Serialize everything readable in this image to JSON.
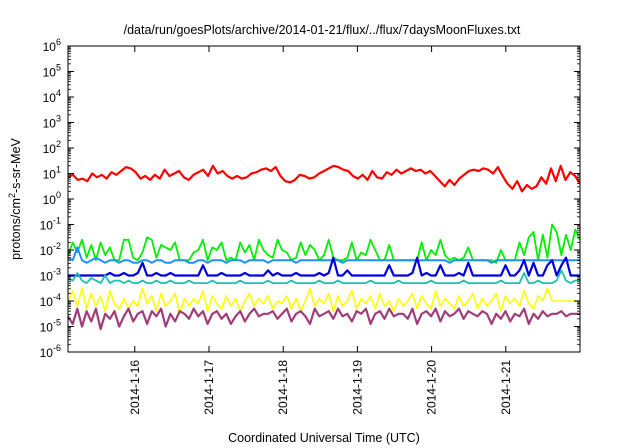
{
  "chart_data": {
    "type": "line",
    "title": "/data/run/goesPlots/archive/2014-01-21/flux/../flux/7daysMoonFluxes.txt",
    "xlabel": "Coordinated Universal Time (UTC)",
    "ylabel_prefix": "protons/cm",
    "ylabel_sup": "2",
    "ylabel_suffix": "-s-sr-MeV",
    "y_scale": "log",
    "ylim_exponents": [
      -6,
      6
    ],
    "y_tick_exponents": [
      6,
      5,
      4,
      3,
      2,
      1,
      0,
      -1,
      -2,
      -3,
      -4,
      -5,
      -6
    ],
    "y_tick_base": "10",
    "x_range_days": [
      15.1,
      22.0
    ],
    "x_ticks": [
      {
        "label": "2014-1-16",
        "day": 16
      },
      {
        "label": "2014-1-17",
        "day": 17
      },
      {
        "label": "2014-1-18",
        "day": 18
      },
      {
        "label": "2014-1-19",
        "day": 19
      },
      {
        "label": "2014-1-20",
        "day": 20
      },
      {
        "label": "2014-1-21",
        "day": 21
      }
    ],
    "grid": false,
    "legend": "none",
    "series": [
      {
        "color": "#ff0000",
        "x_day_start": 15.1,
        "x_day_end": 22.0,
        "log10_values": [
          0.85,
          0.95,
          0.75,
          0.8,
          0.7,
          1.0,
          0.85,
          0.95,
          0.8,
          1.05,
          0.95,
          1.1,
          1.25,
          1.2,
          1.05,
          0.8,
          0.9,
          0.75,
          0.95,
          0.8,
          1.15,
          0.9,
          1.0,
          1.1,
          0.85,
          0.75,
          0.95,
          1.05,
          1.15,
          0.9,
          1.3,
          1.0,
          1.1,
          0.9,
          0.8,
          0.9,
          0.8,
          0.85,
          1.0,
          1.05,
          1.15,
          1.2,
          1.1,
          1.25,
          0.9,
          0.7,
          0.65,
          0.75,
          0.95,
          0.9,
          0.8,
          0.85,
          1.0,
          1.1,
          1.2,
          1.3,
          1.25,
          1.15,
          1.1,
          0.9,
          0.8,
          0.95,
          0.75,
          1.1,
          0.85,
          0.8,
          1.05,
          0.95,
          1.15,
          1.0,
          1.1,
          1.2,
          1.1,
          1.15,
          1.0,
          1.1,
          0.9,
          0.7,
          0.5,
          0.75,
          0.55,
          0.8,
          0.95,
          1.1,
          1.15,
          1.1,
          1.2,
          1.15,
          1.0,
          1.25,
          0.9,
          0.6,
          0.4,
          0.7,
          0.3,
          0.55,
          0.4,
          0.5,
          0.85,
          0.6,
          1.2,
          0.7,
          1.3,
          0.75,
          1.05,
          0.9,
          0.6
        ],
        "stroke_width": 2.2
      },
      {
        "color": "#00ee00",
        "x_day_start": 15.1,
        "x_day_end": 22.0,
        "log10_values": [
          -2.2,
          -1.7,
          -2.1,
          -1.6,
          -2.3,
          -1.8,
          -2.4,
          -1.7,
          -2.2,
          -1.9,
          -2.4,
          -2.4,
          -1.6,
          -1.6,
          -2.3,
          -2.4,
          -2.1,
          -1.5,
          -1.6,
          -2.3,
          -1.8,
          -1.9,
          -2.0,
          -1.7,
          -2.4,
          -2.4,
          -2.4,
          -2.1,
          -2.0,
          -1.6,
          -2.4,
          -1.9,
          -2.0,
          -1.7,
          -2.4,
          -2.3,
          -2.4,
          -1.7,
          -2.1,
          -1.8,
          -2.4,
          -1.6,
          -2.0,
          -2.2,
          -2.3,
          -1.6,
          -2.0,
          -2.1,
          -2.4,
          -2.3,
          -1.7,
          -2.2,
          -1.8,
          -2.0,
          -2.4,
          -2.2,
          -1.6,
          -2.3,
          -2.4,
          -2.4,
          -2.3,
          -1.7,
          -2.4,
          -2.1,
          -2.2,
          -1.6,
          -2.0,
          -2.4,
          -2.4,
          -1.8,
          -2.4,
          -2.4,
          -2.4,
          -2.4,
          -2.4,
          -2.4,
          -1.7,
          -2.4,
          -2.0,
          -2.2,
          -1.6,
          -2.2,
          -2.4,
          -2.3,
          -2.4,
          -2.3,
          -1.9,
          -2.4,
          -2.4,
          -2.4,
          -2.4,
          -2.4,
          -2.5,
          -2.0,
          -2.4,
          -2.4,
          -2.4,
          -1.7,
          -2.2,
          -1.5,
          -1.3,
          -2.4,
          -1.4,
          -2.3,
          -1.0,
          -1.3,
          -2.2,
          -1.4,
          -2.0,
          -1.2,
          -1.6
        ],
        "stroke_width": 1.8
      },
      {
        "color": "#1e90ff",
        "x_day_start": 15.1,
        "x_day_end": 22.0,
        "log10_values": [
          -2.3,
          -2.4,
          -1.9,
          -2.4,
          -2.5,
          -2.4,
          -2.3,
          -2.4,
          -2.5,
          -2.4,
          -2.4,
          -2.5,
          -2.4,
          -2.4,
          -2.5,
          -2.5,
          -2.4,
          -2.4,
          -2.5,
          -2.4,
          -2.4,
          -2.5,
          -2.5,
          -2.4,
          -2.4,
          -2.4,
          -2.5,
          -2.5,
          -2.4,
          -2.4,
          -2.5,
          -2.4,
          -2.4,
          -2.4,
          -2.5,
          -2.4,
          -2.4,
          -2.4,
          -2.5,
          -2.4,
          -2.4,
          -2.4,
          -2.4,
          -2.5,
          -2.4,
          -2.4,
          -2.4,
          -2.4,
          -2.4,
          -2.5,
          -2.4,
          -2.4,
          -2.4,
          -2.4,
          -2.4,
          -2.4,
          -2.4,
          -2.4,
          -2.4,
          -2.5,
          -2.4,
          -2.4,
          -2.4,
          -2.4,
          -2.4,
          -2.4,
          -2.4,
          -2.4,
          -2.4,
          -2.4,
          -2.4,
          -2.4,
          -2.4,
          -2.4,
          -2.4,
          -2.4,
          -2.4,
          -2.4,
          -2.4,
          -2.4,
          -2.4,
          -2.4,
          -2.5,
          -2.4,
          -2.4,
          -2.4,
          -2.4,
          -2.4,
          -2.4,
          -2.4,
          -2.4,
          -2.5,
          -2.4,
          -2.4,
          -2.4,
          -2.4,
          -2.4,
          -2.4,
          -2.4,
          -2.4,
          -2.4,
          -2.4,
          -2.4,
          -2.4,
          -2.4,
          -2.4,
          -2.4,
          -2.4,
          -2.4,
          -2.4,
          -2.4
        ],
        "stroke_width": 2.0
      },
      {
        "color": "#0000dd",
        "x_day_start": 15.1,
        "x_day_end": 22.0,
        "log10_values": [
          -3.0,
          -3.0,
          -3.0,
          -3.0,
          -3.0,
          -3.0,
          -3.0,
          -3.0,
          -3.0,
          -2.9,
          -3.0,
          -3.0,
          -2.9,
          -3.0,
          -3.0,
          -2.9,
          -2.5,
          -3.0,
          -3.0,
          -2.9,
          -3.0,
          -3.0,
          -2.9,
          -3.0,
          -3.0,
          -3.0,
          -3.0,
          -3.0,
          -3.0,
          -2.6,
          -3.0,
          -3.0,
          -3.0,
          -2.9,
          -3.0,
          -3.0,
          -3.0,
          -3.0,
          -2.9,
          -3.0,
          -3.0,
          -3.0,
          -3.0,
          -2.8,
          -3.0,
          -2.9,
          -3.0,
          -3.0,
          -3.0,
          -2.9,
          -3.0,
          -3.0,
          -3.0,
          -3.0,
          -2.9,
          -3.0,
          -2.9,
          -2.3,
          -3.0,
          -3.0,
          -2.8,
          -3.0,
          -3.0,
          -3.0,
          -3.0,
          -3.0,
          -3.0,
          -3.0,
          -3.0,
          -2.6,
          -3.0,
          -3.0,
          -3.0,
          -3.0,
          -2.9,
          -2.3,
          -3.0,
          -2.9,
          -3.0,
          -3.0,
          -2.6,
          -3.0,
          -3.0,
          -3.0,
          -2.9,
          -3.0,
          -2.5,
          -3.0,
          -3.0,
          -3.0,
          -3.0,
          -3.0,
          -3.0,
          -3.0,
          -2.6,
          -3.0,
          -3.0,
          -2.8,
          -2.4,
          -3.0,
          -2.5,
          -3.0,
          -3.0,
          -2.6,
          -2.4,
          -3.0,
          -2.6,
          -2.3,
          -3.0,
          -3.0,
          -3.0
        ],
        "stroke_width": 2.2
      },
      {
        "color": "#20c0b0",
        "x_day_start": 15.1,
        "x_day_end": 22.0,
        "log10_values": [
          -3.1,
          -3.2,
          -2.9,
          -3.2,
          -3.3,
          -3.1,
          -3.2,
          -3.3,
          -3.0,
          -3.3,
          -3.2,
          -3.2,
          -3.3,
          -3.2,
          -3.3,
          -3.3,
          -3.2,
          -3.3,
          -3.3,
          -3.2,
          -3.3,
          -3.3,
          -3.2,
          -3.3,
          -3.3,
          -3.3,
          -3.2,
          -3.3,
          -3.3,
          -3.3,
          -3.3,
          -3.2,
          -3.3,
          -3.3,
          -3.3,
          -3.3,
          -3.3,
          -3.2,
          -3.3,
          -3.3,
          -3.3,
          -3.3,
          -3.3,
          -3.2,
          -3.3,
          -3.3,
          -3.3,
          -3.3,
          -3.2,
          -3.3,
          -3.3,
          -3.3,
          -3.3,
          -3.3,
          -3.2,
          -3.3,
          -3.3,
          -3.3,
          -3.2,
          -3.3,
          -3.3,
          -3.3,
          -3.3,
          -3.3,
          -3.3,
          -3.2,
          -3.3,
          -3.3,
          -3.3,
          -3.3,
          -3.3,
          -3.2,
          -3.3,
          -3.3,
          -3.3,
          -3.3,
          -3.3,
          -3.3,
          -3.2,
          -3.3,
          -3.3,
          -3.3,
          -3.3,
          -3.3,
          -3.3,
          -3.2,
          -3.3,
          -3.3,
          -3.3,
          -3.3,
          -3.3,
          -3.3,
          -3.3,
          -3.2,
          -3.3,
          -3.3,
          -3.3,
          -3.3,
          -2.9,
          -3.3,
          -3.3,
          -3.2,
          -3.3,
          -3.3,
          -3.3,
          -3.2,
          -2.8,
          -3.2,
          -3.3,
          -3.2,
          -3.2
        ],
        "stroke_width": 1.8
      },
      {
        "color": "#ffff00",
        "x_day_start": 15.1,
        "x_day_end": 22.0,
        "log10_values": [
          -4.0,
          -3.6,
          -4.2,
          -3.5,
          -4.3,
          -3.7,
          -4.2,
          -3.8,
          -4.4,
          -3.6,
          -4.1,
          -4.3,
          -3.9,
          -4.3,
          -4.0,
          -4.2,
          -3.5,
          -4.1,
          -3.8,
          -4.4,
          -3.7,
          -4.2,
          -4.0,
          -3.7,
          -4.5,
          -3.9,
          -4.2,
          -3.9,
          -4.1,
          -3.6,
          -4.4,
          -3.8,
          -4.1,
          -4.3,
          -3.8,
          -4.2,
          -3.9,
          -4.4,
          -4.0,
          -3.7,
          -4.2,
          -3.9,
          -4.1,
          -3.8,
          -4.3,
          -4.0,
          -4.1,
          -3.8,
          -4.3,
          -3.9,
          -4.4,
          -4.0,
          -3.5,
          -4.2,
          -3.9,
          -4.1,
          -3.7,
          -4.4,
          -3.8,
          -4.2,
          -4.0,
          -3.6,
          -4.3,
          -3.9,
          -4.1,
          -3.8,
          -4.3,
          -3.7,
          -4.2,
          -4.0,
          -4.4,
          -3.9,
          -4.2,
          -4.0,
          -3.7,
          -4.3,
          -3.8,
          -4.1,
          -4.3,
          -3.6,
          -4.2,
          -3.9,
          -4.1,
          -4.3,
          -3.8,
          -4.2,
          -4.0,
          -3.7,
          -4.3,
          -3.9,
          -4.2,
          -4.0,
          -3.7,
          -4.4,
          -3.8,
          -4.1,
          -3.9,
          -4.2,
          -3.6,
          -4.1,
          -4.3,
          -3.8,
          -4.0,
          -3.5,
          -4.0,
          -4.0,
          -4.0,
          -4.0,
          -4.0,
          -4.0,
          -4.0
        ],
        "stroke_width": 1.6
      },
      {
        "color": "#a03c78",
        "x_day_start": 15.1,
        "x_day_end": 22.0,
        "log10_values": [
          -4.6,
          -4.9,
          -4.3,
          -5.0,
          -4.4,
          -4.8,
          -4.3,
          -5.1,
          -4.5,
          -4.7,
          -4.4,
          -5.0,
          -4.6,
          -4.3,
          -4.8,
          -4.5,
          -4.4,
          -4.9,
          -4.4,
          -4.6,
          -4.3,
          -5.0,
          -4.5,
          -4.8,
          -4.4,
          -4.5,
          -4.7,
          -4.3,
          -4.6,
          -4.4,
          -4.9,
          -4.5,
          -4.4,
          -4.7,
          -4.5,
          -4.9,
          -4.6,
          -4.4,
          -4.8,
          -4.5,
          -4.3,
          -4.6,
          -4.5,
          -4.5,
          -4.4,
          -4.7,
          -4.5,
          -4.3,
          -4.8,
          -4.5,
          -4.4,
          -4.6,
          -4.9,
          -4.3,
          -4.6,
          -4.5,
          -4.4,
          -4.7,
          -4.3,
          -4.6,
          -4.5,
          -4.8,
          -4.4,
          -4.5,
          -4.3,
          -4.9,
          -4.5,
          -4.4,
          -4.7,
          -4.3,
          -4.6,
          -4.5,
          -4.5,
          -4.7,
          -4.3,
          -4.9,
          -4.5,
          -4.4,
          -4.6,
          -4.3,
          -4.8,
          -4.4,
          -4.6,
          -4.5,
          -4.3,
          -4.7,
          -4.4,
          -4.5,
          -4.6,
          -4.4,
          -4.5,
          -4.9,
          -4.5,
          -4.7,
          -4.4,
          -4.8,
          -4.5,
          -4.6,
          -4.3,
          -4.9,
          -4.5,
          -4.7,
          -4.4,
          -4.6,
          -4.5,
          -4.5,
          -4.4,
          -4.6,
          -4.5,
          -4.5,
          -4.5
        ],
        "stroke_width": 2.2
      }
    ]
  }
}
